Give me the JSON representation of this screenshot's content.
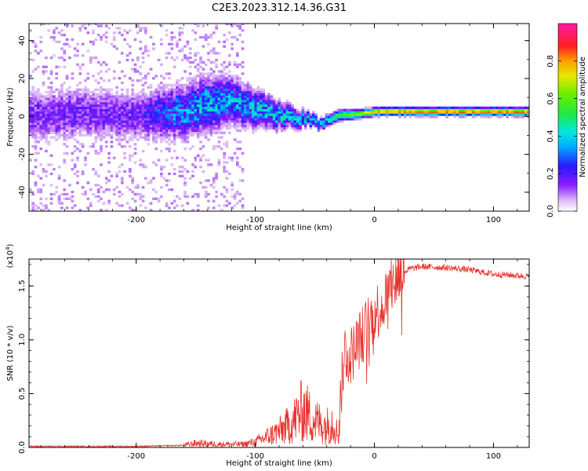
{
  "title": "C2E3.2023.312.14.36.G31",
  "chart_data": [
    {
      "type": "heatmap",
      "xlabel": "Height of straight line (km)",
      "ylabel": "Frequency (Hz)",
      "xlim": [
        -290,
        130
      ],
      "ylim": [
        -50,
        49
      ],
      "xticks": [
        -200,
        -100,
        0,
        100
      ],
      "xtick_labels": [
        "-200",
        "-100",
        "0",
        "100"
      ],
      "yticks": [
        -40,
        -20,
        0,
        20,
        40
      ],
      "ytick_labels": [
        "-40",
        "-20",
        "0",
        "20",
        "40"
      ],
      "colorbar": {
        "label": "Normalized spectral amplitude",
        "range": [
          0,
          1
        ],
        "ticks": [
          0,
          0.2,
          0.4,
          0.6,
          0.8
        ],
        "tick_labels": [
          "0.0",
          "0.2",
          "0.4",
          "0.6",
          "0.8"
        ],
        "colormap": "rainbow (violet→blue→cyan→green→yellow→orange→red→magenta)"
      },
      "ridge": {
        "description": "Spectral power concentrated near 0 Hz; broad and noisy at low heights, narrowing to a strong line above about -30 km",
        "x": [
          -290,
          -250,
          -200,
          -160,
          -140,
          -120,
          -100,
          -80,
          -60,
          -45,
          -30,
          -10,
          0,
          30,
          60,
          90,
          130
        ],
        "center": [
          0,
          1,
          0,
          2,
          6,
          7,
          4,
          0,
          -2,
          -4,
          0,
          1,
          2,
          2,
          2,
          2,
          2
        ],
        "halfwidth": [
          10,
          10,
          10,
          10,
          10,
          9,
          7,
          5,
          3,
          2,
          2,
          1.5,
          1.5,
          1.5,
          1.5,
          1.5,
          1.5
        ],
        "peak_amplitude": [
          0.15,
          0.15,
          0.15,
          0.3,
          0.35,
          0.3,
          0.35,
          0.35,
          0.35,
          0.4,
          0.55,
          0.7,
          0.8,
          0.85,
          0.85,
          0.85,
          0.85
        ]
      }
    },
    {
      "type": "line",
      "xlabel": "Height of straight line (km)",
      "ylabel": "SNR (10 * v/v)",
      "y_multiplier_label": "(x10",
      "y_multiplier_exp": "4",
      "xlim": [
        -290,
        130
      ],
      "ylim": [
        0,
        1.75
      ],
      "xticks": [
        -200,
        -100,
        0,
        100
      ],
      "xtick_labels": [
        "-200",
        "-100",
        "0",
        "100"
      ],
      "yticks": [
        0,
        0.5,
        1.0,
        1.5
      ],
      "ytick_labels": [
        "0.0",
        "0.5",
        "1.0",
        "1.5"
      ],
      "color": "#e8312a",
      "series": [
        {
          "x": [
            -290,
            -250,
            -200,
            -160,
            -150,
            -130,
            -110,
            -100,
            -90,
            -80,
            -70,
            -60,
            -50,
            -40,
            -35,
            -30,
            -28,
            -25,
            -20,
            -15,
            -10,
            -5,
            0,
            5,
            10,
            15,
            20,
            30,
            40,
            60,
            80,
            100,
            130
          ],
          "values": [
            0.01,
            0.01,
            0.01,
            0.02,
            0.04,
            0.03,
            0.03,
            0.05,
            0.1,
            0.15,
            0.22,
            0.35,
            0.25,
            0.2,
            0.25,
            0.1,
            0.5,
            0.9,
            0.85,
            0.95,
            1.05,
            1.15,
            1.25,
            1.3,
            1.4,
            1.5,
            1.6,
            1.66,
            1.68,
            1.67,
            1.65,
            1.61,
            1.59
          ]
        }
      ]
    }
  ]
}
